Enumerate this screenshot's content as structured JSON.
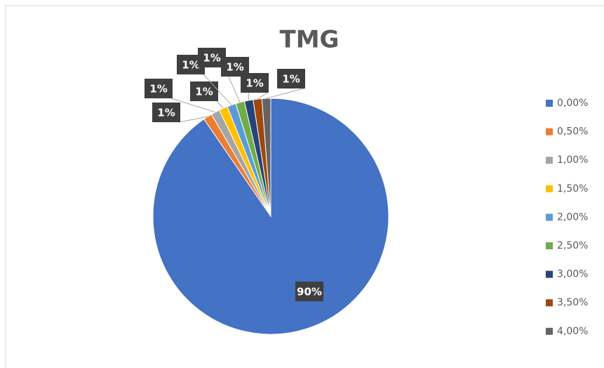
{
  "chart_data": {
    "type": "pie",
    "title": "TMG",
    "categories": [
      "0,00%",
      "0,50%",
      "1,00%",
      "1,50%",
      "2,00%",
      "2,50%",
      "3,00%",
      "3,50%",
      "4,00%"
    ],
    "values": [
      90.4,
      1.2,
      1.2,
      1.2,
      1.2,
      1.2,
      1.2,
      1.2,
      1.2
    ],
    "value_labels": [
      "90%",
      "1%",
      "1%",
      "1%",
      "1%",
      "1%",
      "1%",
      "1%",
      "1%"
    ],
    "colors": [
      "#4472c4",
      "#ed7d31",
      "#a5a5a5",
      "#ffc000",
      "#5b9bd5",
      "#70ad47",
      "#264478",
      "#9e480e",
      "#636363"
    ],
    "legend": "right"
  }
}
